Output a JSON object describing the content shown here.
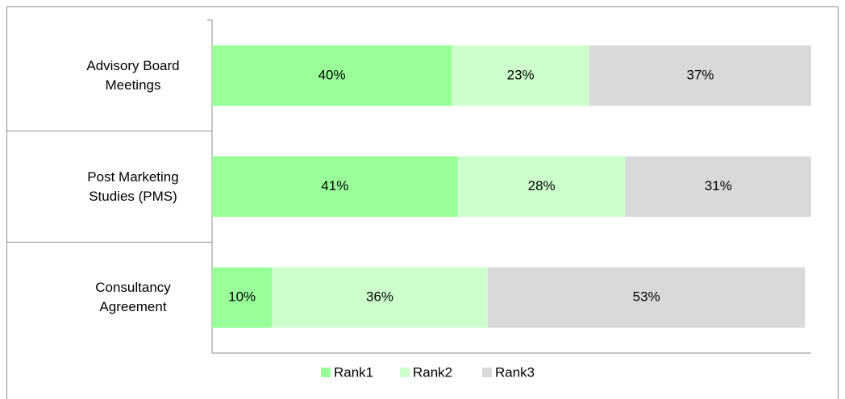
{
  "chart_data": {
    "type": "stacked-barh",
    "categories": [
      "Advisory Board Meetings",
      "Post Marketing Studies (PMS)",
      "Consultancy Agreement"
    ],
    "series": [
      {
        "name": "Rank1",
        "color": "#99ff99",
        "values": [
          40,
          41,
          10
        ],
        "value_labels": [
          "40%",
          "41%",
          "10%"
        ]
      },
      {
        "name": "Rank2",
        "color": "#ccffcc",
        "values": [
          23,
          28,
          36
        ],
        "value_labels": [
          "23%",
          "28%",
          "36%"
        ]
      },
      {
        "name": "Rank3",
        "color": "#d9d9d9",
        "values": [
          37,
          31,
          53
        ],
        "value_labels": [
          "37%",
          "31%",
          "53%"
        ]
      }
    ],
    "xlim": [
      0,
      100
    ],
    "legend": "bottom"
  }
}
